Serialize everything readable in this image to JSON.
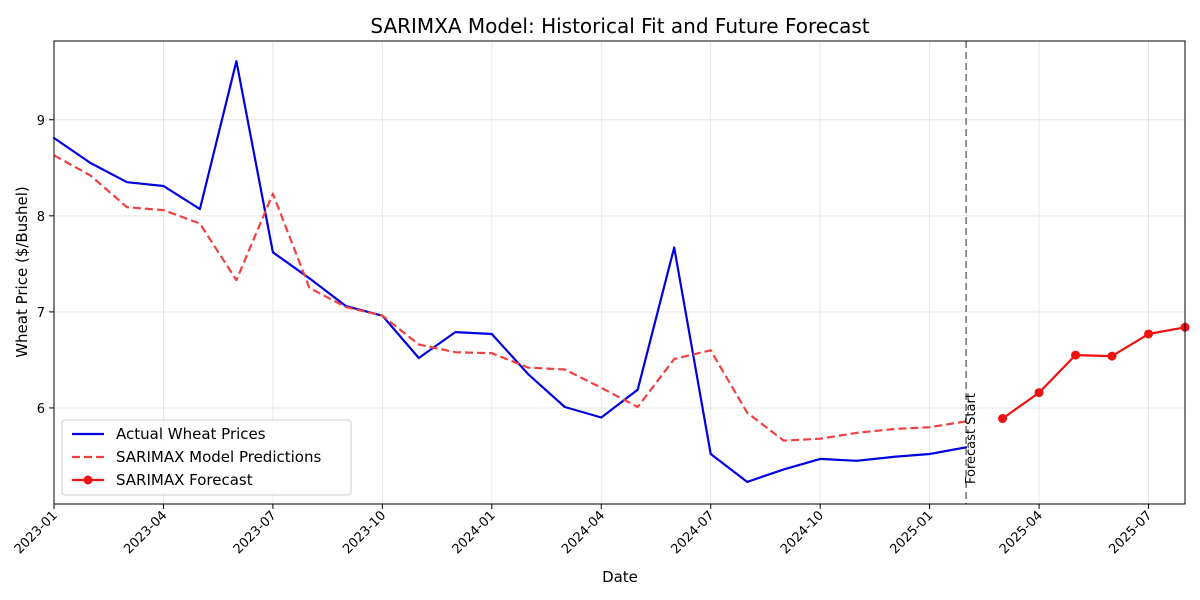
{
  "chart_data": {
    "type": "line",
    "title": "SARIMXA Model: Historical Fit and Future Forecast",
    "xlabel": "Date",
    "ylabel": "Wheat Price ($/Bushel)",
    "xlim": [
      "2023-01",
      "2025-08"
    ],
    "ylim": [
      5.0,
      9.82
    ],
    "x_ticks": [
      "2023-01",
      "2023-04",
      "2023-07",
      "2023-10",
      "2024-01",
      "2024-04",
      "2024-07",
      "2024-10",
      "2025-01",
      "2025-04",
      "2025-07"
    ],
    "y_ticks": [
      6,
      7,
      8,
      9
    ],
    "grid": true,
    "legend_position": "lower-left",
    "annotation": {
      "label": "Forecast Start",
      "x": "2025-02"
    },
    "series": [
      {
        "name": "Actual Wheat Prices",
        "color": "#0000e0",
        "style": "solid",
        "x": [
          "2023-01",
          "2023-02",
          "2023-03",
          "2023-04",
          "2023-05",
          "2023-06",
          "2023-07",
          "2023-08",
          "2023-09",
          "2023-10",
          "2023-11",
          "2023-12",
          "2024-01",
          "2024-02",
          "2024-03",
          "2024-04",
          "2024-05",
          "2024-06",
          "2024-07",
          "2024-08",
          "2024-09",
          "2024-10",
          "2024-11",
          "2024-12",
          "2025-01",
          "2025-02"
        ],
        "values": [
          8.81,
          8.55,
          8.35,
          8.31,
          8.07,
          9.61,
          7.62,
          7.35,
          7.06,
          6.96,
          6.52,
          6.79,
          6.77,
          6.35,
          6.01,
          5.9,
          6.19,
          7.67,
          5.52,
          5.23,
          5.36,
          5.47,
          5.45,
          5.49,
          5.52,
          5.59
        ]
      },
      {
        "name": "SARIMAX Model Predictions",
        "color": "#f04040",
        "style": "dashed",
        "x": [
          "2023-01",
          "2023-02",
          "2023-03",
          "2023-04",
          "2023-05",
          "2023-06",
          "2023-07",
          "2023-08",
          "2023-09",
          "2023-10",
          "2023-11",
          "2023-12",
          "2024-01",
          "2024-02",
          "2024-03",
          "2024-04",
          "2024-05",
          "2024-06",
          "2024-07",
          "2024-08",
          "2024-09",
          "2024-10",
          "2024-11",
          "2024-12",
          "2025-01",
          "2025-02"
        ],
        "values": [
          8.63,
          8.42,
          8.09,
          8.06,
          7.92,
          7.33,
          8.23,
          7.25,
          7.05,
          6.96,
          6.66,
          6.58,
          6.57,
          6.42,
          6.4,
          6.21,
          6.01,
          6.51,
          6.6,
          5.95,
          5.66,
          5.68,
          5.74,
          5.78,
          5.8,
          5.86
        ]
      },
      {
        "name": "SARIMAX Forecast",
        "color": "#ee1111",
        "style": "solid-markers",
        "x": [
          "2025-03",
          "2025-04",
          "2025-05",
          "2025-06",
          "2025-07",
          "2025-08"
        ],
        "values": [
          5.89,
          6.16,
          6.55,
          6.54,
          6.77,
          6.84
        ]
      }
    ]
  }
}
